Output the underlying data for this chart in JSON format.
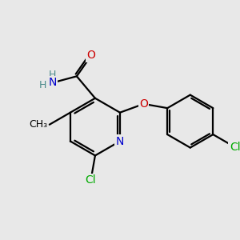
{
  "bg_color": "#e8e8e8",
  "bond_color": "#000000",
  "bond_width": 1.6,
  "atom_colors": {
    "C": "#000000",
    "N": "#0000cc",
    "O": "#cc0000",
    "Cl": "#00aa00",
    "H": "#4a8a8a"
  },
  "font_size": 10,
  "fig_size": [
    3.0,
    3.0
  ],
  "dpi": 100,
  "xlim": [
    0,
    10
  ],
  "ylim": [
    0,
    10
  ]
}
